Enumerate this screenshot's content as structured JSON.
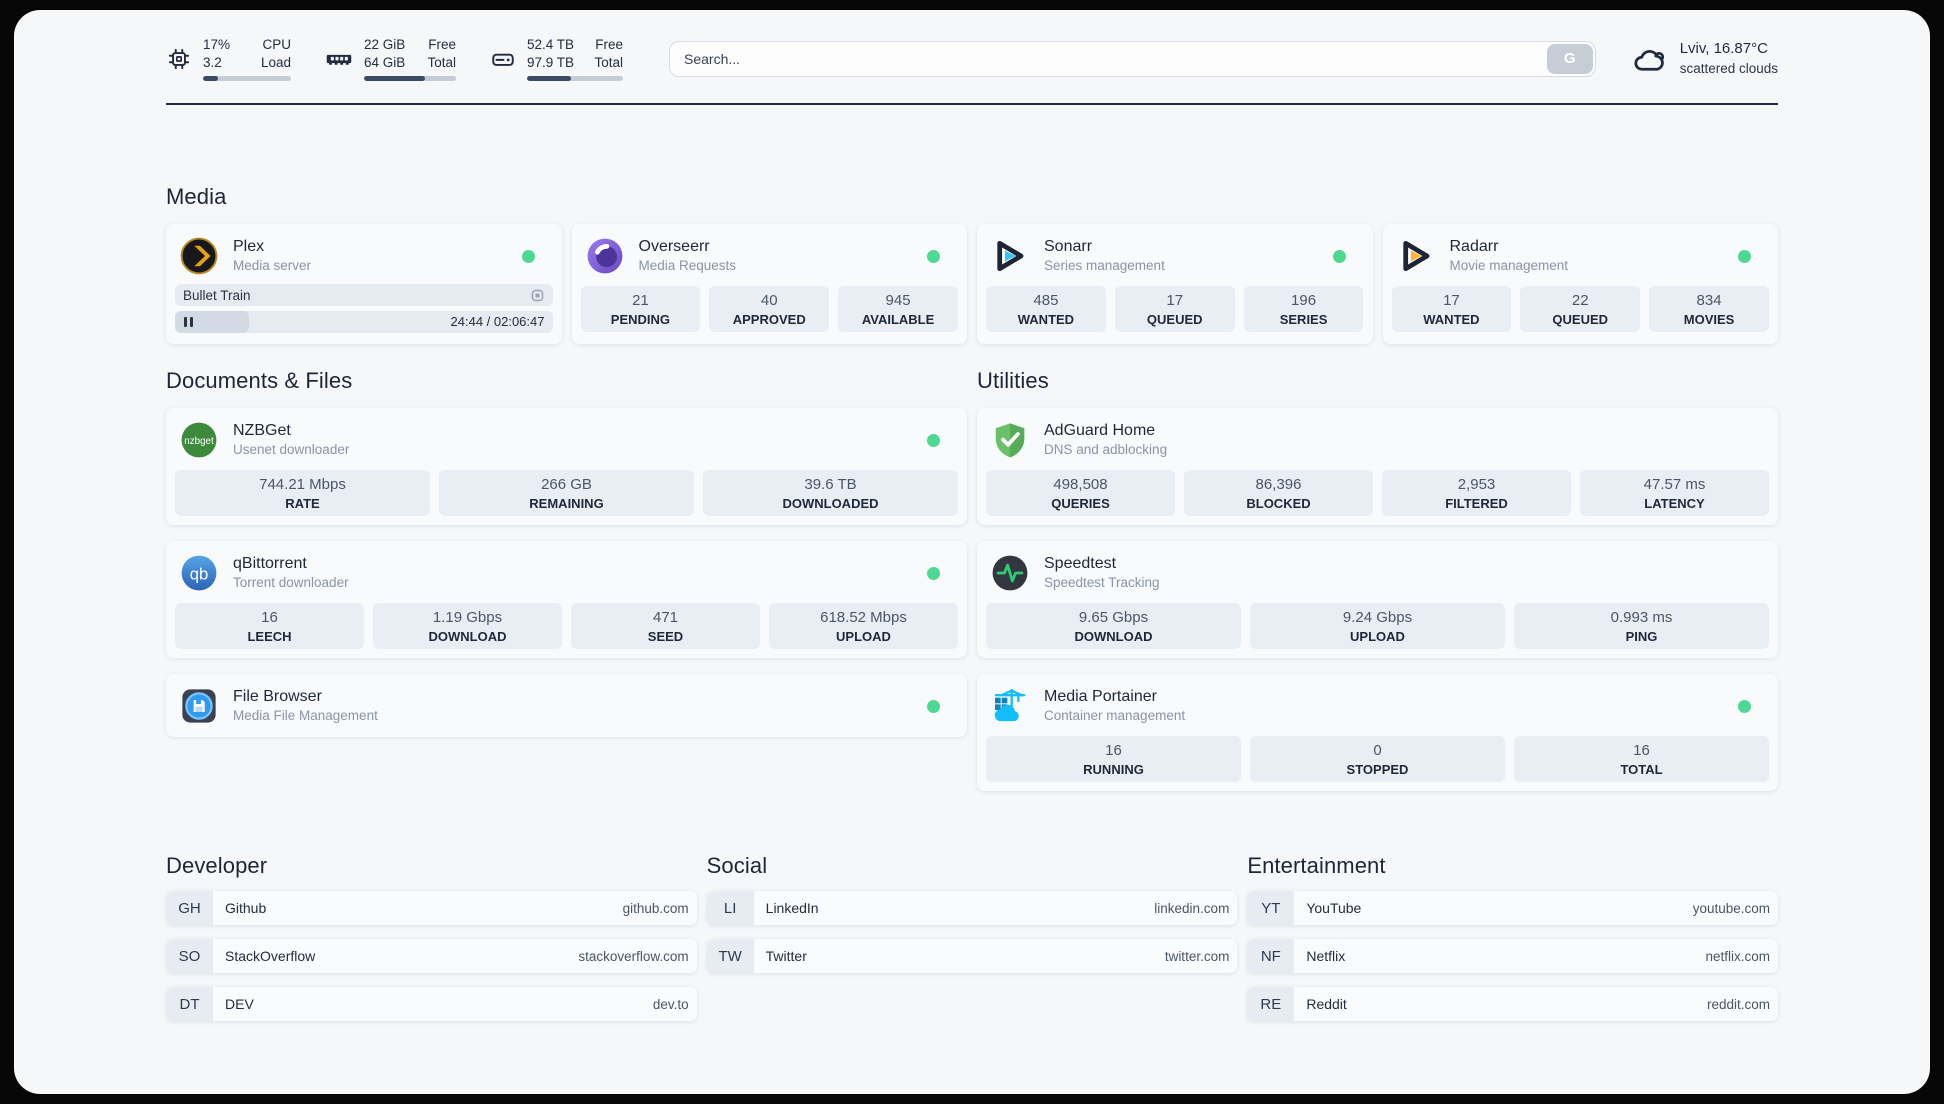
{
  "topbar": {
    "cpu": {
      "values": [
        "17%",
        "3.2"
      ],
      "labels": [
        "CPU",
        "Load"
      ],
      "percent": 17
    },
    "memory": {
      "values": [
        "22 GiB",
        "64 GiB"
      ],
      "labels": [
        "Free",
        "Total"
      ],
      "percent": 66
    },
    "disk": {
      "values": [
        "52.4 TB",
        "97.9 TB"
      ],
      "labels": [
        "Free",
        "Total"
      ],
      "percent": 46
    },
    "search": {
      "placeholder": "Search...",
      "button_label": "G"
    },
    "weather": {
      "location_temp": "Lviv, 16.87°C",
      "condition": "scattered clouds"
    }
  },
  "media": {
    "title": "Media",
    "plex": {
      "name": "Plex",
      "desc": "Media server",
      "now_playing": "Bullet Train",
      "time": "24:44 / 02:06:47",
      "progress_percent": 19.5
    },
    "overseerr": {
      "name": "Overseerr",
      "desc": "Media Requests",
      "stats": [
        {
          "value": "21",
          "label": "PENDING"
        },
        {
          "value": "40",
          "label": "APPROVED"
        },
        {
          "value": "945",
          "label": "AVAILABLE"
        }
      ]
    },
    "sonarr": {
      "name": "Sonarr",
      "desc": "Series management",
      "stats": [
        {
          "value": "485",
          "label": "WANTED"
        },
        {
          "value": "17",
          "label": "QUEUED"
        },
        {
          "value": "196",
          "label": "SERIES"
        }
      ]
    },
    "radarr": {
      "name": "Radarr",
      "desc": "Movie management",
      "stats": [
        {
          "value": "17",
          "label": "WANTED"
        },
        {
          "value": "22",
          "label": "QUEUED"
        },
        {
          "value": "834",
          "label": "MOVIES"
        }
      ]
    }
  },
  "documents": {
    "title": "Documents & Files",
    "nzbget": {
      "name": "NZBGet",
      "desc": "Usenet downloader",
      "stats": [
        {
          "value": "744.21 Mbps",
          "label": "RATE"
        },
        {
          "value": "266 GB",
          "label": "REMAINING"
        },
        {
          "value": "39.6 TB",
          "label": "DOWNLOADED"
        }
      ]
    },
    "qbittorrent": {
      "name": "qBittorrent",
      "desc": "Torrent downloader",
      "stats": [
        {
          "value": "16",
          "label": "LEECH"
        },
        {
          "value": "1.19 Gbps",
          "label": "DOWNLOAD"
        },
        {
          "value": "471",
          "label": "SEED"
        },
        {
          "value": "618.52 Mbps",
          "label": "UPLOAD"
        }
      ]
    },
    "filebrowser": {
      "name": "File Browser",
      "desc": "Media File Management"
    }
  },
  "utilities": {
    "title": "Utilities",
    "adguard": {
      "name": "AdGuard Home",
      "desc": "DNS and adblocking",
      "stats": [
        {
          "value": "498,508",
          "label": "QUERIES"
        },
        {
          "value": "86,396",
          "label": "BLOCKED"
        },
        {
          "value": "2,953",
          "label": "FILTERED"
        },
        {
          "value": "47.57 ms",
          "label": "LATENCY"
        }
      ]
    },
    "speedtest": {
      "name": "Speedtest",
      "desc": "Speedtest Tracking",
      "stats": [
        {
          "value": "9.65 Gbps",
          "label": "DOWNLOAD"
        },
        {
          "value": "9.24 Gbps",
          "label": "UPLOAD"
        },
        {
          "value": "0.993 ms",
          "label": "PING"
        }
      ]
    },
    "portainer": {
      "name": "Media Portainer",
      "desc": "Container management",
      "stats": [
        {
          "value": "16",
          "label": "RUNNING"
        },
        {
          "value": "0",
          "label": "STOPPED"
        },
        {
          "value": "16",
          "label": "TOTAL"
        }
      ]
    }
  },
  "bookmarks": {
    "developer": {
      "title": "Developer",
      "items": [
        {
          "abbr": "GH",
          "name": "Github",
          "url": "github.com"
        },
        {
          "abbr": "SO",
          "name": "StackOverflow",
          "url": "stackoverflow.com"
        },
        {
          "abbr": "DT",
          "name": "DEV",
          "url": "dev.to"
        }
      ]
    },
    "social": {
      "title": "Social",
      "items": [
        {
          "abbr": "LI",
          "name": "LinkedIn",
          "url": "linkedin.com"
        },
        {
          "abbr": "TW",
          "name": "Twitter",
          "url": "twitter.com"
        }
      ]
    },
    "entertainment": {
      "title": "Entertainment",
      "items": [
        {
          "abbr": "YT",
          "name": "YouTube",
          "url": "youtube.com"
        },
        {
          "abbr": "NF",
          "name": "Netflix",
          "url": "netflix.com"
        },
        {
          "abbr": "RE",
          "name": "Reddit",
          "url": "reddit.com"
        }
      ]
    }
  },
  "colors": {
    "status_green": "#4ed990",
    "plex_gold": "#e5a00d",
    "sonarr_blue": "#35c5f4",
    "radarr_gold": "#ffb733",
    "qbittorrent_blue": "#3576c6",
    "nzbget_green": "#3d8a3d",
    "adguard_green": "#67b173",
    "speedtest_pulse_green": "#2ecc71",
    "portainer_blue": "#13bef9",
    "overseerr_purple": "#7a5bd0",
    "topbar_bar_fill": "#3c4b64"
  }
}
